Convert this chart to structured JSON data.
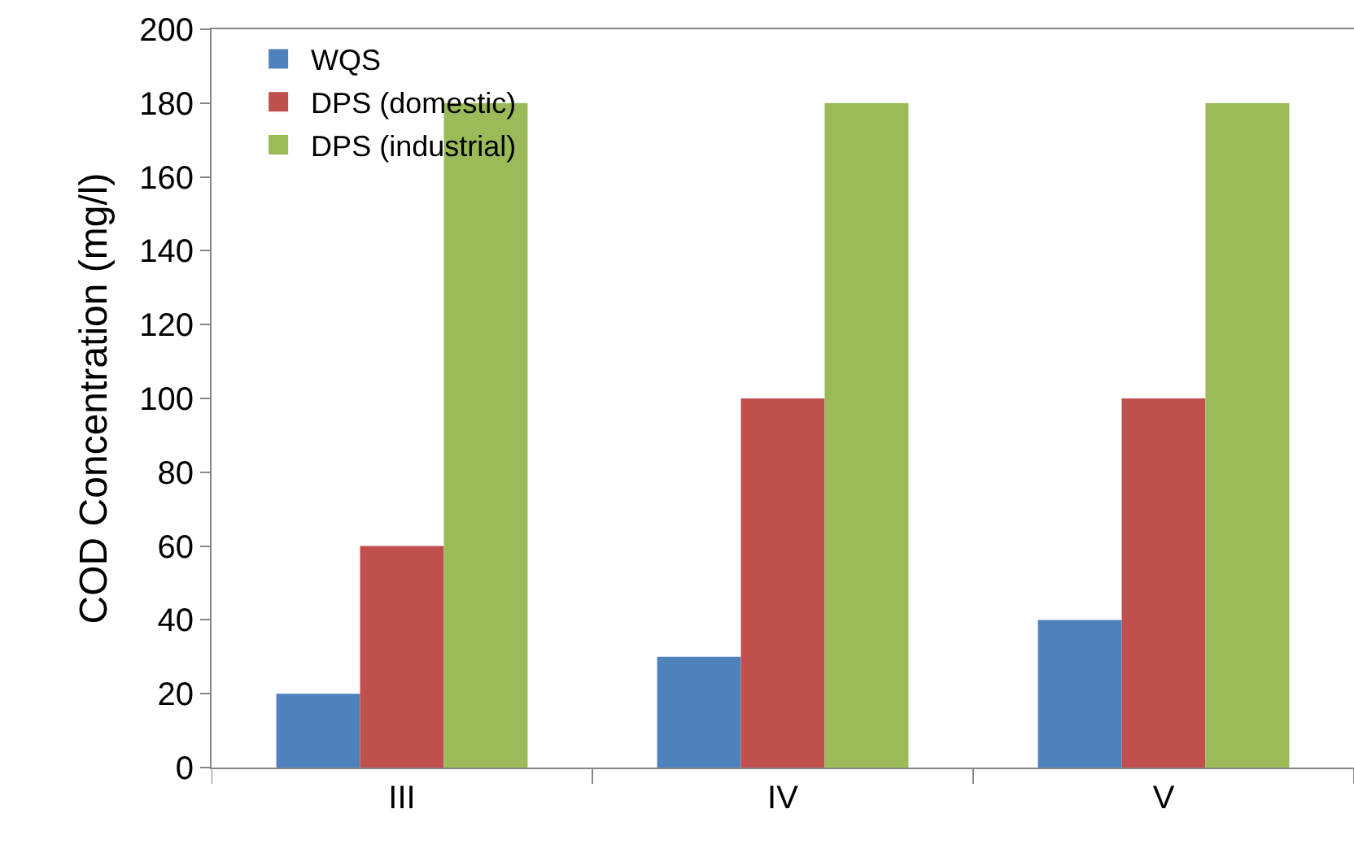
{
  "chart_data": {
    "type": "bar",
    "ylabel": "COD Concentration (mg/l)",
    "categories": [
      "III",
      "IV",
      "V"
    ],
    "series": [
      {
        "name": "WQS",
        "color": "#4f81bd",
        "values": [
          20,
          30,
          40
        ]
      },
      {
        "name": "DPS (domestic)",
        "color": "#c0504d",
        "values": [
          60,
          100,
          100
        ]
      },
      {
        "name": "DPS (industrial)",
        "color": "#9bbb59",
        "values": [
          180,
          180,
          180
        ]
      }
    ],
    "ylim": [
      0,
      200
    ],
    "yticks": [
      0,
      20,
      40,
      60,
      80,
      100,
      120,
      140,
      160,
      180,
      200
    ],
    "grid": false,
    "legend": "top left"
  }
}
